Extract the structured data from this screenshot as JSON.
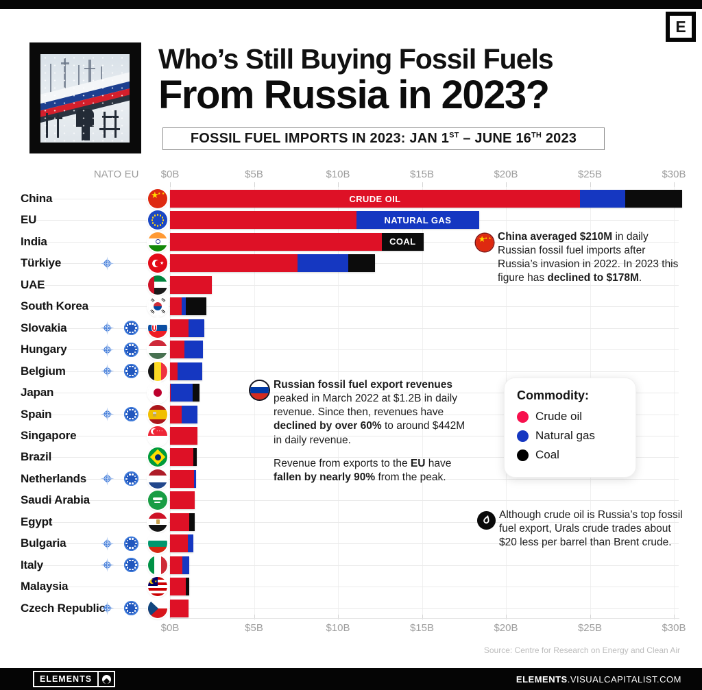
{
  "header": {
    "logo_letter": "E",
    "title_line1": "Who’s Still Buying Fossil Fuels",
    "title_line2": "From Russia in 2023?",
    "subtitle_runs": [
      [
        "FOSSIL FUEL IMPORTS IN 2023: JAN 1",
        0
      ],
      [
        "ST",
        2
      ],
      [
        " – JUNE 16",
        0
      ],
      [
        "TH",
        2
      ],
      [
        " 2023",
        0
      ]
    ]
  },
  "chart_data": {
    "type": "bar",
    "orientation": "horizontal-stacked",
    "unit": "$B",
    "xlim": [
      0,
      30
    ],
    "axis_ticks": [
      "$0B",
      "$5B",
      "$10B",
      "$15B",
      "$20B",
      "$25B",
      "$30B"
    ],
    "col_headers": {
      "nato": "NATO",
      "eu": "EU"
    },
    "series_colors": {
      "crude": "#DE1126",
      "gas": "#1537C1",
      "coal": "#0C0C0C"
    },
    "segment_names": {
      "crude": "Crude oil",
      "gas": "Natural gas",
      "coal": "Coal"
    },
    "rows": [
      {
        "name": "China",
        "nato": false,
        "eu_member": false,
        "crude": 24.4,
        "gas": 2.7,
        "coal": 3.4,
        "seg_label": [
          "crude",
          "CRUDE OIL"
        ],
        "flag": {
          "dir": "h",
          "colors": [
            "#DE2910"
          ],
          "decor": "cn"
        }
      },
      {
        "name": "EU",
        "nato": false,
        "eu_member": false,
        "crude": 11.1,
        "gas": 7.3,
        "coal": 0,
        "seg_label": [
          "gas",
          "NATURAL GAS"
        ],
        "flag": {
          "dir": "h",
          "colors": [
            "#1B48C4"
          ],
          "decor": "eu"
        }
      },
      {
        "name": "India",
        "nato": false,
        "eu_member": false,
        "crude": 12.6,
        "gas": 0,
        "coal": 2.5,
        "seg_label": [
          "coal",
          "COAL"
        ],
        "flag": {
          "dir": "h",
          "colors": [
            "#FF9933",
            "#FFFFFF",
            "#138808"
          ],
          "decor": "in"
        }
      },
      {
        "name": "Türkiye",
        "nato": true,
        "eu_member": false,
        "crude": 7.6,
        "gas": 3.0,
        "coal": 1.6,
        "flag": {
          "dir": "h",
          "colors": [
            "#E30A17"
          ],
          "decor": "tr"
        }
      },
      {
        "name": "UAE",
        "nato": false,
        "eu_member": false,
        "crude": 2.5,
        "gas": 0,
        "coal": 0,
        "flag": {
          "dir": "h",
          "colors": [
            "#00843D",
            "#FFFFFF",
            "#1A1A1A"
          ],
          "decor": "ae"
        }
      },
      {
        "name": "South Korea",
        "nato": false,
        "eu_member": false,
        "crude": 0.7,
        "gas": 0.25,
        "coal": 1.2,
        "flag": {
          "dir": "h",
          "colors": [
            "#FFFFFF"
          ],
          "decor": "kr"
        }
      },
      {
        "name": "Slovakia",
        "nato": true,
        "eu_member": true,
        "crude": 1.1,
        "gas": 0.95,
        "coal": 0,
        "flag": {
          "dir": "h",
          "colors": [
            "#FFFFFF",
            "#0B4EA2",
            "#EE1C25"
          ],
          "decor": "sk"
        }
      },
      {
        "name": "Hungary",
        "nato": true,
        "eu_member": true,
        "crude": 0.85,
        "gas": 1.1,
        "coal": 0,
        "flag": {
          "dir": "h",
          "colors": [
            "#CE2939",
            "#FFFFFF",
            "#477050"
          ]
        }
      },
      {
        "name": "Belgium",
        "nato": true,
        "eu_member": true,
        "crude": 0.45,
        "gas": 1.45,
        "coal": 0,
        "flag": {
          "dir": "v",
          "colors": [
            "#141414",
            "#FDDA24",
            "#EF3340"
          ]
        }
      },
      {
        "name": "Japan",
        "nato": false,
        "eu_member": false,
        "crude": 0.05,
        "gas": 1.3,
        "coal": 0.4,
        "flag": {
          "dir": "h",
          "colors": [
            "#FFFFFF"
          ],
          "decor": "jp"
        }
      },
      {
        "name": "Spain",
        "nato": true,
        "eu_member": true,
        "crude": 0.7,
        "gas": 0.95,
        "coal": 0,
        "flag": {
          "dir": "h",
          "colors": [
            "#AA151B",
            "#F1BF00",
            "#AA151B"
          ],
          "weights": [
            1,
            2,
            1
          ],
          "decor": "es"
        }
      },
      {
        "name": "Singapore",
        "nato": false,
        "eu_member": false,
        "crude": 1.63,
        "gas": 0,
        "coal": 0,
        "flag": {
          "dir": "h",
          "colors": [
            "#EE2536",
            "#FFFFFF"
          ],
          "decor": "sg"
        }
      },
      {
        "name": "Brazil",
        "nato": false,
        "eu_member": false,
        "crude": 1.4,
        "gas": 0,
        "coal": 0.2,
        "flag": {
          "dir": "h",
          "colors": [
            "#009B3A"
          ],
          "decor": "br"
        }
      },
      {
        "name": "Netherlands",
        "nato": true,
        "eu_member": true,
        "crude": 1.42,
        "gas": 0.15,
        "coal": 0,
        "flag": {
          "dir": "h",
          "colors": [
            "#AE1C28",
            "#FFFFFF",
            "#21468B"
          ]
        }
      },
      {
        "name": "Saudi Arabia",
        "nato": false,
        "eu_member": false,
        "crude": 1.47,
        "gas": 0,
        "coal": 0,
        "flag": {
          "dir": "h",
          "colors": [
            "#199D44"
          ],
          "decor": "sa"
        }
      },
      {
        "name": "Egypt",
        "nato": false,
        "eu_member": false,
        "crude": 1.15,
        "gas": 0,
        "coal": 0.3,
        "flag": {
          "dir": "h",
          "colors": [
            "#CE1126",
            "#FFFFFF",
            "#141414"
          ],
          "decor": "eg"
        }
      },
      {
        "name": "Bulgaria",
        "nato": true,
        "eu_member": true,
        "crude": 1.05,
        "gas": 0.35,
        "coal": 0,
        "flag": {
          "dir": "h",
          "colors": [
            "#FFFFFF",
            "#00966E",
            "#D62612"
          ]
        }
      },
      {
        "name": "Italy",
        "nato": true,
        "eu_member": true,
        "crude": 0.75,
        "gas": 0.4,
        "coal": 0,
        "flag": {
          "dir": "v",
          "colors": [
            "#009246",
            "#FFFFFF",
            "#CE2B37"
          ]
        }
      },
      {
        "name": "Malaysia",
        "nato": false,
        "eu_member": false,
        "crude": 0.95,
        "gas": 0,
        "coal": 0.2,
        "flag": {
          "dir": "h",
          "colors": [
            "#CC0001",
            "#FFFFFF",
            "#CC0001",
            "#FFFFFF",
            "#CC0001",
            "#FFFFFF",
            "#CC0001"
          ],
          "decor": "my"
        }
      },
      {
        "name": "Czech Republic",
        "nato": true,
        "eu_member": true,
        "crude": 1.1,
        "gas": 0,
        "coal": 0,
        "flag": {
          "dir": "h",
          "colors": [
            "#FFFFFF",
            "#D7141A"
          ],
          "decor": "cz"
        }
      }
    ]
  },
  "annotations": {
    "china": {
      "icon_flag": {
        "dir": "h",
        "colors": [
          "#DE2910"
        ],
        "decor": "cn"
      },
      "runs": [
        [
          "China averaged $210M",
          1
        ],
        [
          " in daily Russian fossil fuel imports after Russia’s invasion in 2022. In 2023 this figure has ",
          0
        ],
        [
          "declined to $178M",
          1
        ],
        [
          ".",
          0
        ]
      ]
    },
    "revenue": {
      "icon_flag": {
        "dir": "h",
        "colors": [
          "#FFFFFF",
          "#0039A6",
          "#D52B1E"
        ]
      },
      "paras": [
        [
          [
            "Russian fossil fuel export revenues",
            1
          ],
          [
            " peaked in March 2022 at $1.2B in daily revenue. Since then, revenues have ",
            0
          ],
          [
            "declined by over 60%",
            1
          ],
          [
            " to around $442M in daily revenue.",
            0
          ]
        ],
        [
          [
            "Revenue from exports to the ",
            0
          ],
          [
            "EU",
            1
          ],
          [
            " have ",
            0
          ],
          [
            "fallen by nearly 90%",
            1
          ],
          [
            " from the peak.",
            0
          ]
        ]
      ]
    },
    "urals": {
      "runs": [
        [
          "Although crude oil is Russia’s top fossil fuel export, Urals crude trades about $20 less per barrel than Brent crude.",
          0
        ]
      ]
    }
  },
  "legend": {
    "title": "Commodity:",
    "items": [
      {
        "label": "Crude oil",
        "color": "#F7104D"
      },
      {
        "label": "Natural gas",
        "color": "#1537C1"
      },
      {
        "label": "Coal",
        "color": "#000000"
      }
    ]
  },
  "source": "Source: Centre for Research on Energy and Clean Air",
  "footer": {
    "brand": "ELEMENTS",
    "site_bold": "ELEMENTS",
    "site_rest": ".VISUALCAPITALIST.COM"
  }
}
